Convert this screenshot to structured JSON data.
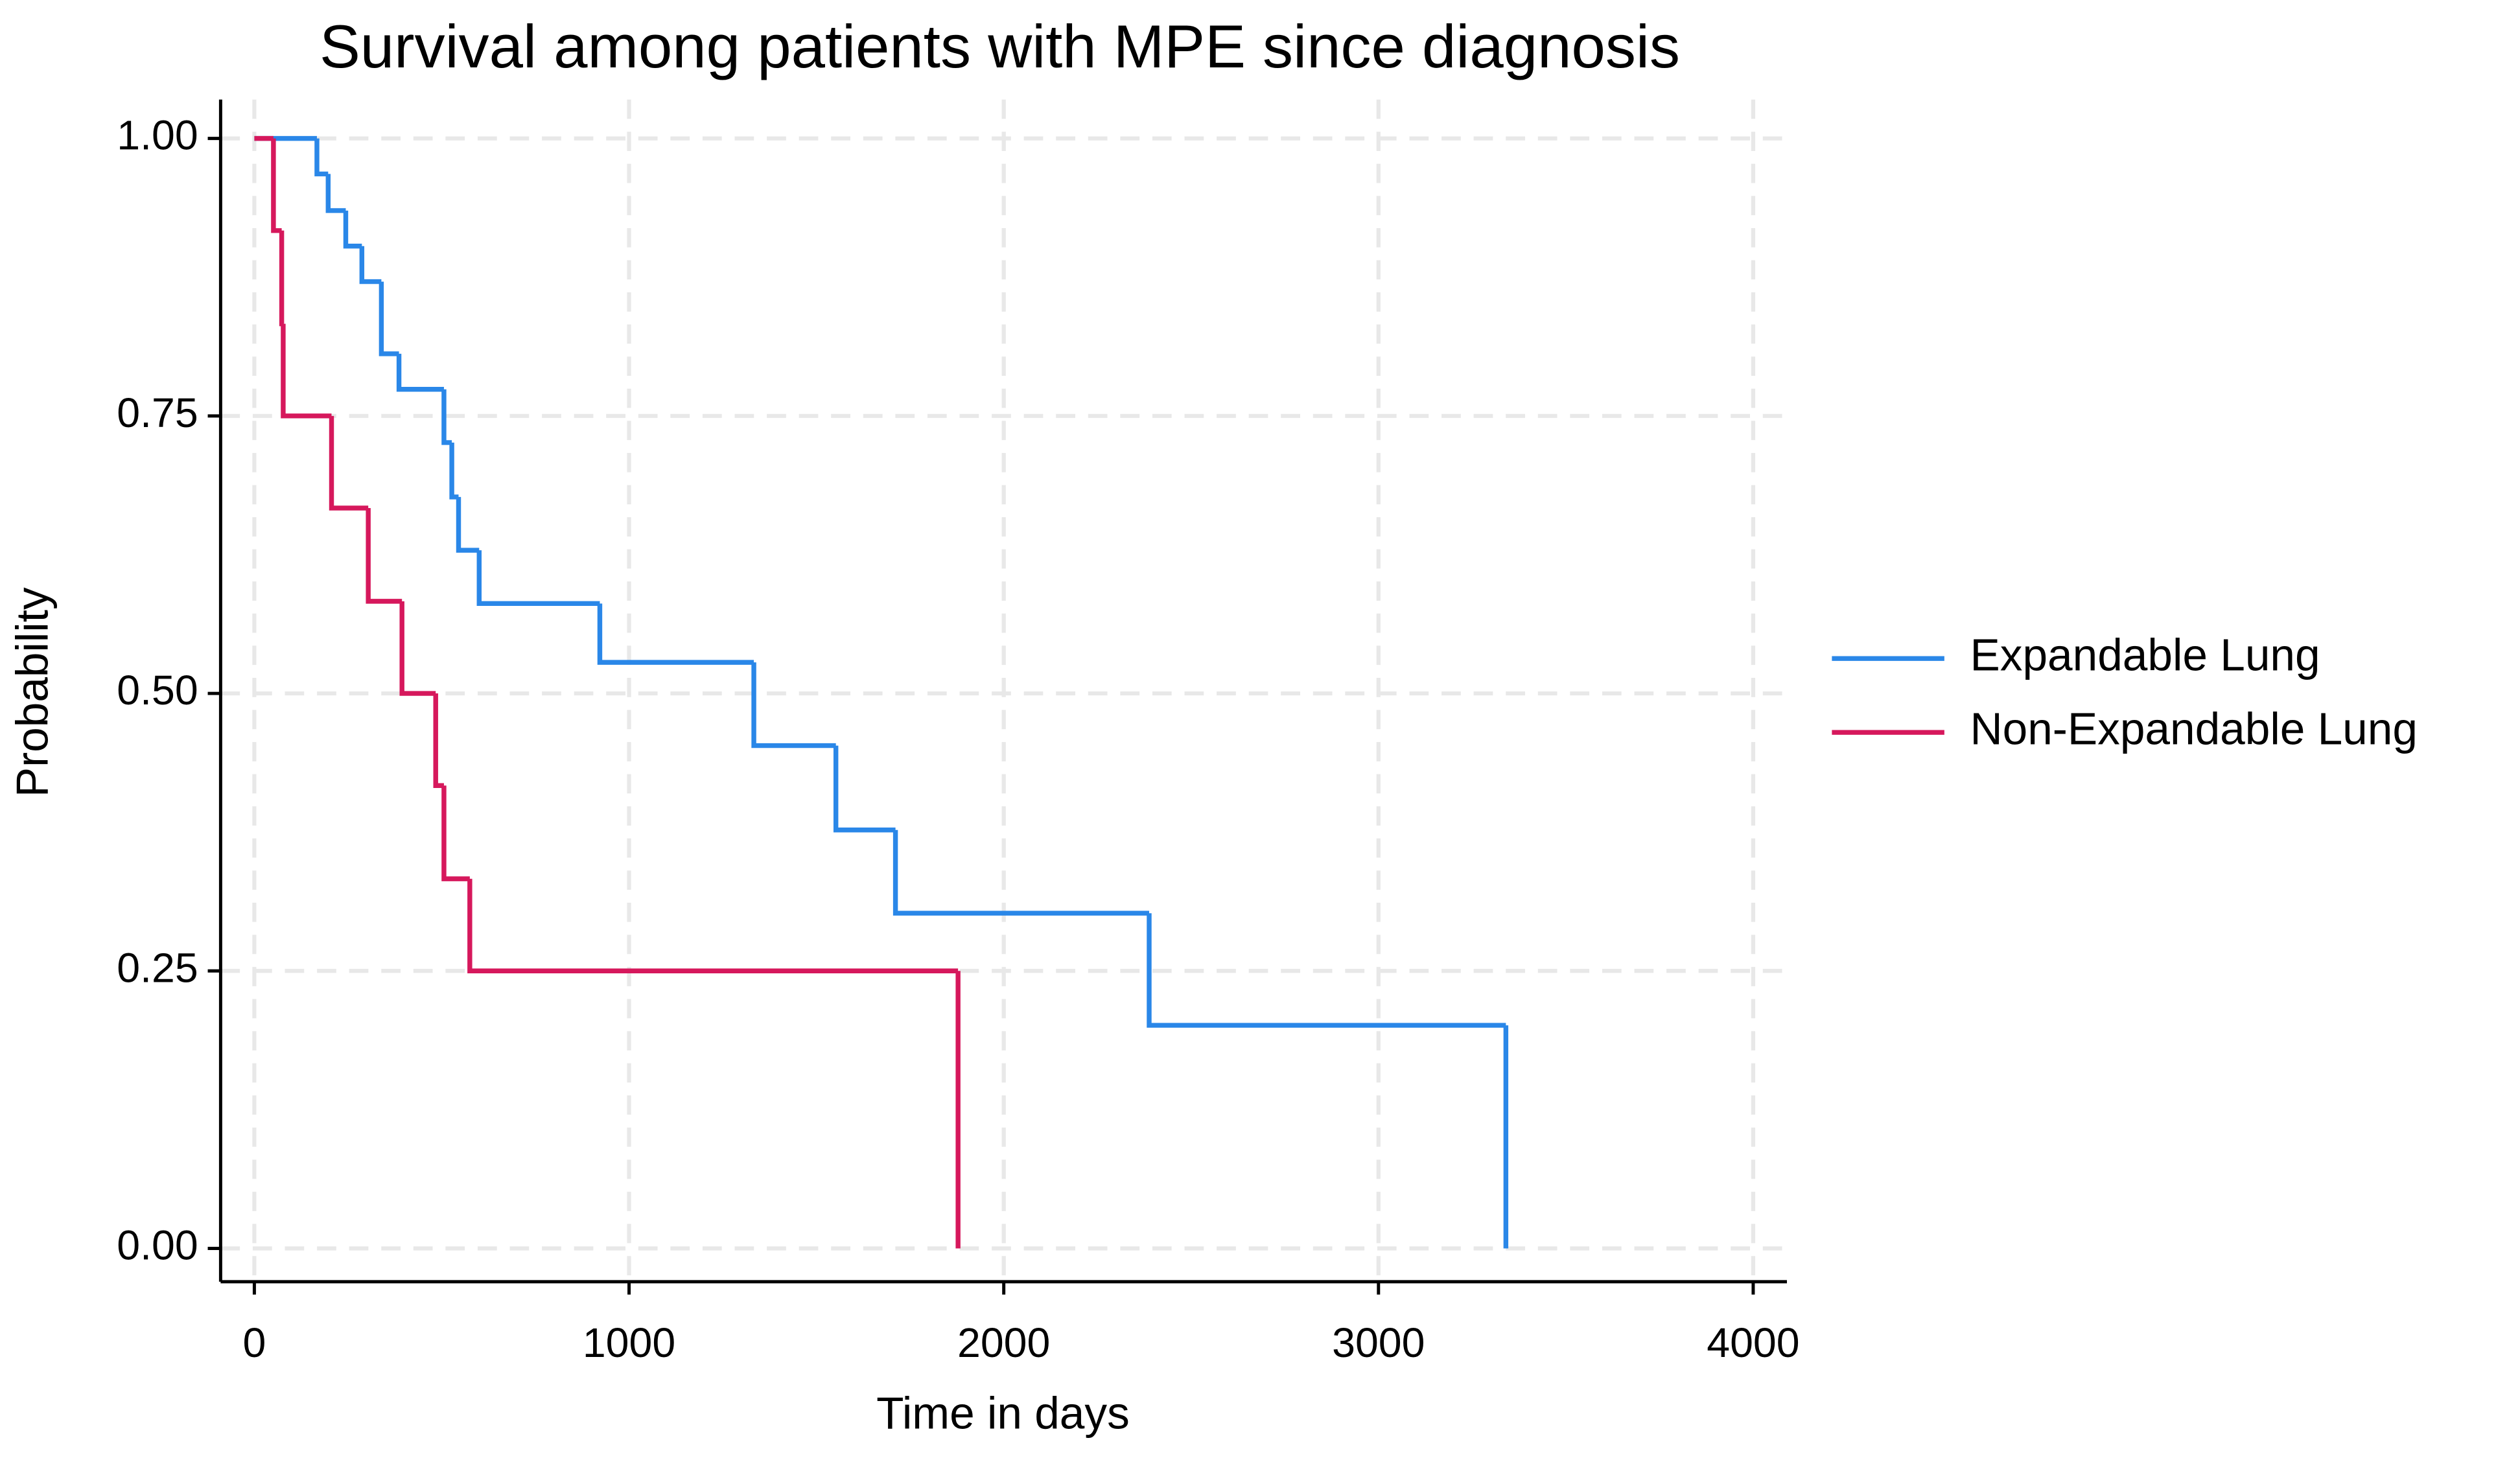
{
  "chart_data": {
    "type": "line",
    "step": "post",
    "title": "Survival among patients with MPE since diagnosis",
    "x_label": "Time in days",
    "y_label": "Probability",
    "xlim": [
      -90,
      4090
    ],
    "ylim": [
      -0.03,
      1.035
    ],
    "xticks": [
      0,
      1000,
      2000,
      3000,
      4000
    ],
    "yticks": [
      {
        "value": 0,
        "label": "0.00"
      },
      {
        "value": 0.25,
        "label": "0.25"
      },
      {
        "value": 0.5,
        "label": "0.50"
      },
      {
        "value": 0.75,
        "label": "0.75"
      },
      {
        "value": 1,
        "label": "1.00"
      }
    ],
    "grid": true,
    "legend": "right",
    "series": [
      {
        "name": "Expandable Lung",
        "color": "#2a87e8",
        "x": [
          0,
          167,
          197,
          244,
          287,
          339,
          386,
          506,
          527,
          545,
          600,
          922,
          1333,
          1552,
          1711,
          2388,
          3340
        ],
        "values": [
          1,
          0.968,
          0.935,
          0.903,
          0.871,
          0.806,
          0.774,
          0.726,
          0.677,
          0.629,
          0.581,
          0.528,
          0.453,
          0.377,
          0.302,
          0.201,
          0
        ]
      },
      {
        "name": "Non-Expandable Lung",
        "color": "#d6185c",
        "x": [
          0,
          51,
          73,
          77,
          206,
          304,
          394,
          484,
          506,
          575,
          1878
        ],
        "values": [
          1,
          0.917,
          0.833,
          0.75,
          0.667,
          0.583,
          0.5,
          0.417,
          0.333,
          0.25,
          0
        ]
      }
    ]
  }
}
